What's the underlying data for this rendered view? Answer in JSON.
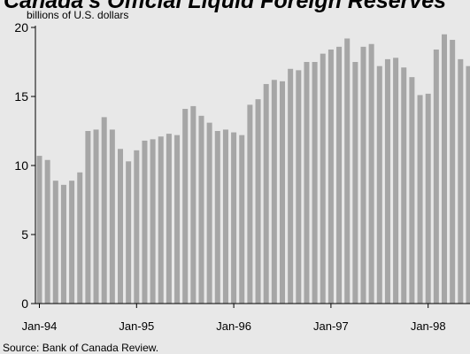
{
  "chart_data": {
    "type": "bar",
    "title": "Canada's Official Liquid Foreign Reserves",
    "ylabel": "billions of U.S. dollars",
    "source": "Source: Bank of Canada Review.",
    "ylim": [
      0,
      20
    ],
    "yticks": [
      0,
      5,
      10,
      15,
      20
    ],
    "xtick_labels": [
      "Jan-94",
      "Jan-95",
      "Jan-96",
      "Jan-97",
      "Jan-98"
    ],
    "grid": false,
    "bar_color": "#a6a6a6",
    "x": [
      "1994-01",
      "1994-02",
      "1994-03",
      "1994-04",
      "1994-05",
      "1994-06",
      "1994-07",
      "1994-08",
      "1994-09",
      "1994-10",
      "1994-11",
      "1994-12",
      "1995-01",
      "1995-02",
      "1995-03",
      "1995-04",
      "1995-05",
      "1995-06",
      "1995-07",
      "1995-08",
      "1995-09",
      "1995-10",
      "1995-11",
      "1995-12",
      "1996-01",
      "1996-02",
      "1996-03",
      "1996-04",
      "1996-05",
      "1996-06",
      "1996-07",
      "1996-08",
      "1996-09",
      "1996-10",
      "1996-11",
      "1996-12",
      "1997-01",
      "1997-02",
      "1997-03",
      "1997-04",
      "1997-05",
      "1997-06",
      "1997-07",
      "1997-08",
      "1997-09",
      "1997-10",
      "1997-11",
      "1997-12",
      "1998-01",
      "1998-02",
      "1998-03",
      "1998-04",
      "1998-05",
      "1998-06"
    ],
    "values": [
      10.7,
      10.4,
      8.9,
      8.6,
      8.9,
      9.5,
      12.5,
      12.6,
      13.5,
      12.6,
      11.2,
      10.3,
      11.1,
      11.8,
      11.9,
      12.1,
      12.3,
      12.2,
      14.1,
      14.3,
      13.6,
      13.1,
      12.5,
      12.6,
      12.4,
      12.2,
      14.4,
      14.8,
      15.9,
      16.2,
      16.1,
      17.0,
      16.9,
      17.5,
      17.5,
      18.1,
      18.4,
      18.6,
      19.2,
      17.5,
      18.6,
      18.8,
      17.2,
      17.7,
      17.8,
      17.1,
      16.4,
      15.1,
      15.2,
      18.4,
      19.5,
      19.1,
      17.7,
      17.2
    ]
  }
}
